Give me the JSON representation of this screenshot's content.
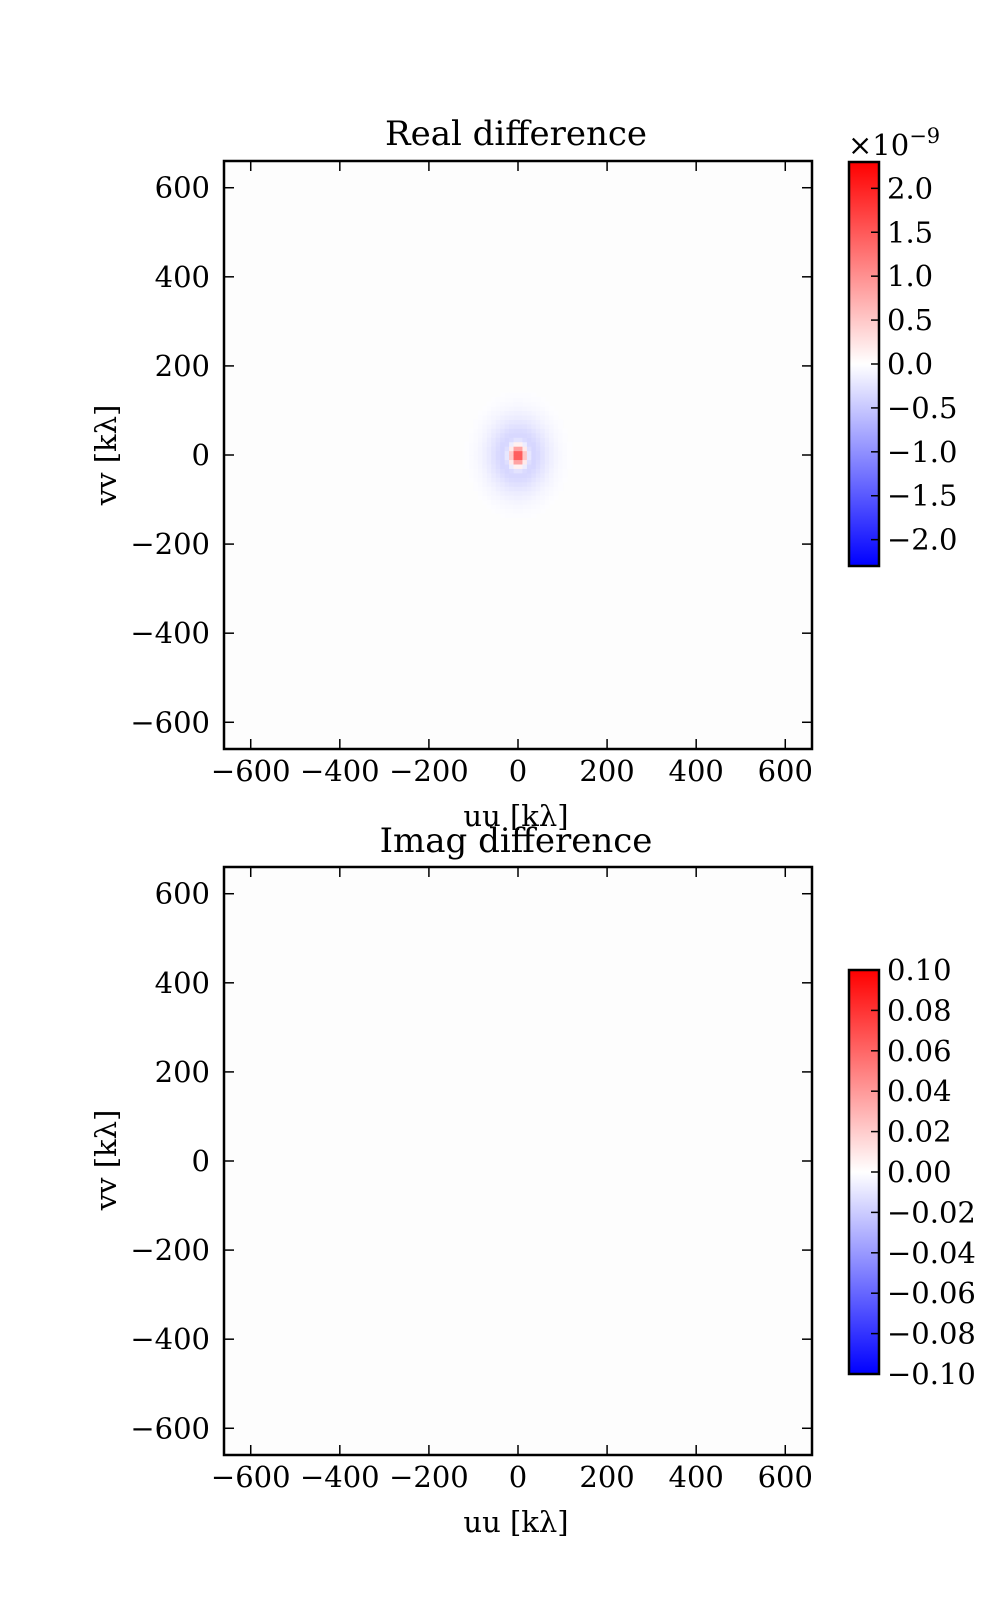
{
  "chart_data": [
    {
      "type": "heatmap",
      "title": "Real difference",
      "xlabel": "uu [kλ]",
      "ylabel": "vv [kλ]",
      "xlim": [
        -660,
        660
      ],
      "ylim": [
        -660,
        660
      ],
      "xticks": [
        -600,
        -400,
        -200,
        0,
        200,
        400,
        600
      ],
      "yticks": [
        -600,
        -400,
        -200,
        0,
        200,
        400,
        600
      ],
      "xtick_labels": [
        "−600",
        "−400",
        "−200",
        "0",
        "200",
        "400",
        "600"
      ],
      "ytick_labels": [
        "−600",
        "−400",
        "−200",
        "0",
        "200",
        "400",
        "600"
      ],
      "colormap": "bwr",
      "colors": {
        "low": "#0000ff",
        "mid": "#ffffff",
        "high": "#ff0000"
      },
      "colorbar": {
        "vmin": -2.3e-09,
        "vmax": 2.3e-09,
        "ticks": [
          2.0,
          1.5,
          1.0,
          0.5,
          0.0,
          -0.5,
          -1.0,
          -1.5,
          -2.0
        ],
        "tick_labels": [
          "2.0",
          "1.5",
          "1.0",
          "0.5",
          "0.0",
          "−0.5",
          "−1.0",
          "−1.5",
          "−2.0"
        ],
        "multiplier": "×10",
        "multiplier_exp": "−9"
      },
      "features": [
        {
          "shape": "gaussian",
          "center": [
            0,
            0
          ],
          "sigma_u": 12,
          "sigma_v": 16,
          "value": 2.3e-09
        },
        {
          "shape": "gaussian",
          "center": [
            0,
            0
          ],
          "sigma_u": 45,
          "sigma_v": 55,
          "value": -5.5e-10
        }
      ],
      "background_value": 0.0
    },
    {
      "type": "heatmap",
      "title": "Imag difference",
      "xlabel": "uu [kλ]",
      "ylabel": "vv [kλ]",
      "xlim": [
        -660,
        660
      ],
      "ylim": [
        -660,
        660
      ],
      "xticks": [
        -600,
        -400,
        -200,
        0,
        200,
        400,
        600
      ],
      "yticks": [
        -600,
        -400,
        -200,
        0,
        200,
        400,
        600
      ],
      "xtick_labels": [
        "−600",
        "−400",
        "−200",
        "0",
        "200",
        "400",
        "600"
      ],
      "ytick_labels": [
        "−600",
        "−400",
        "−200",
        "0",
        "200",
        "400",
        "600"
      ],
      "colormap": "bwr",
      "colors": {
        "low": "#0000ff",
        "mid": "#ffffff",
        "high": "#ff0000"
      },
      "colorbar": {
        "vmin": -0.1,
        "vmax": 0.1,
        "ticks": [
          0.1,
          0.08,
          0.06,
          0.04,
          0.02,
          0.0,
          -0.02,
          -0.04,
          -0.06,
          -0.08,
          -0.1
        ],
        "tick_labels": [
          "0.10",
          "0.08",
          "0.06",
          "0.04",
          "0.02",
          "0.00",
          "−0.02",
          "−0.04",
          "−0.06",
          "−0.08",
          "−0.10"
        ]
      },
      "features": [],
      "background_value": 0.0
    }
  ]
}
